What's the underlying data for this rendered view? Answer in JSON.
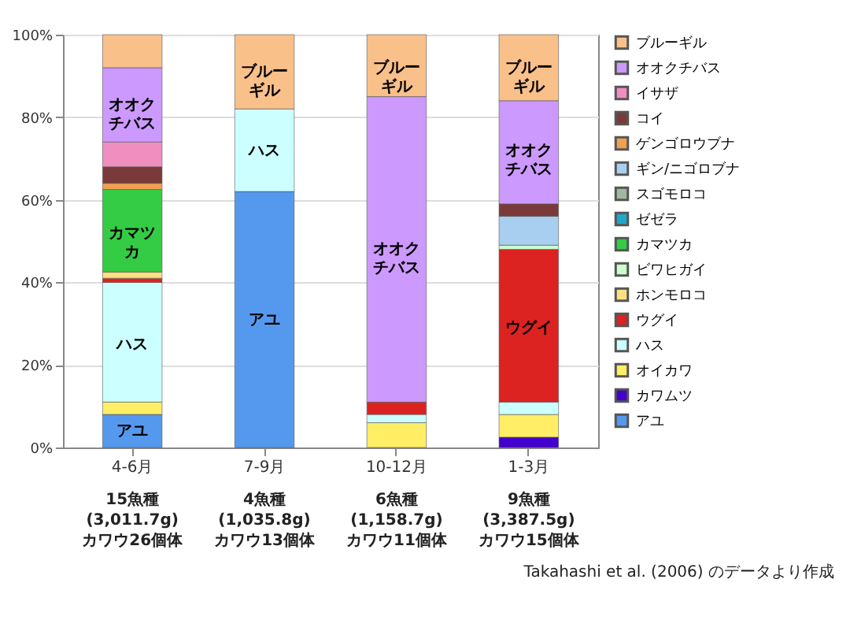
{
  "chart_data": {
    "type": "bar",
    "stacked": true,
    "categories": [
      "4-6月",
      "7-9月",
      "10-12月",
      "1-3月"
    ],
    "series": [
      {
        "name": "アユ",
        "color": "#5599ee",
        "values": [
          8,
          62,
          null,
          null
        ]
      },
      {
        "name": "カワムツ",
        "color": "#4400cc",
        "values": [
          null,
          null,
          null,
          2.5
        ]
      },
      {
        "name": "オイカワ",
        "color": "#ffee66",
        "values": [
          3,
          null,
          6,
          5.5
        ]
      },
      {
        "name": "ハス",
        "color": "#ccffff",
        "values": [
          29,
          20,
          2,
          3
        ]
      },
      {
        "name": "ウグイ",
        "color": "#dd2222",
        "values": [
          1,
          null,
          3,
          37
        ]
      },
      {
        "name": "ホンモロコ",
        "color": "#ffe080",
        "values": [
          1.5,
          null,
          null,
          null
        ]
      },
      {
        "name": "ビワヒガイ",
        "color": "#ccffcc",
        "values": [
          null,
          null,
          null,
          1
        ]
      },
      {
        "name": "カマツカ",
        "color": "#33cc44",
        "values": [
          20,
          null,
          null,
          null
        ]
      },
      {
        "name": "ゼゼラ",
        "color": "#20a8c8",
        "values": [
          null,
          null,
          null,
          null
        ]
      },
      {
        "name": "スゴモロコ",
        "color": "#a0b8a0",
        "values": [
          null,
          null,
          null,
          null
        ]
      },
      {
        "name": "ギン/ニゴロブナ",
        "color": "#a8cff0",
        "values": [
          null,
          null,
          null,
          7
        ]
      },
      {
        "name": "ゲンゴロウブナ",
        "color": "#f0a050",
        "values": [
          1.5,
          null,
          null,
          null
        ]
      },
      {
        "name": "コイ",
        "color": "#7b3a3a",
        "values": [
          4,
          null,
          null,
          3
        ]
      },
      {
        "name": "イサザ",
        "color": "#f08ec0",
        "values": [
          6,
          null,
          null,
          null
        ]
      },
      {
        "name": "オオクチバス",
        "color": "#cc99ff",
        "values": [
          18,
          null,
          74,
          25
        ]
      },
      {
        "name": "ブルーギル",
        "color": "#f9c08a",
        "values": [
          8,
          18,
          15,
          16
        ]
      }
    ],
    "ylim": [
      0,
      100
    ],
    "yticks": [
      {
        "value": 0,
        "label": "0%"
      },
      {
        "value": 20,
        "label": "20%"
      },
      {
        "value": 40,
        "label": "40%"
      },
      {
        "value": 60,
        "label": "60%"
      },
      {
        "value": 80,
        "label": "80%"
      },
      {
        "value": 100,
        "label": "100%"
      }
    ],
    "grid": "y",
    "legend": "right",
    "annotations": [
      "アユ",
      "ハス",
      "カマツカ",
      "オオクチバス",
      "アユ",
      "ハス",
      "ブルーギル",
      "オオクチバス",
      "ブルーギル",
      "ウグイ",
      "オオクチバス",
      "ブルーギル",
      "15魚種\n(3,011.7g)\nカワウ26個体",
      "4魚種\n(1,035.8g)\nカワウ13個体",
      "6魚種\n(1,158.7g)\nカワウ11個体",
      "9魚種\n(3,387.5g)\nカワウ15個体",
      "Takahashi et al. (2006) のデータより作成"
    ]
  }
}
